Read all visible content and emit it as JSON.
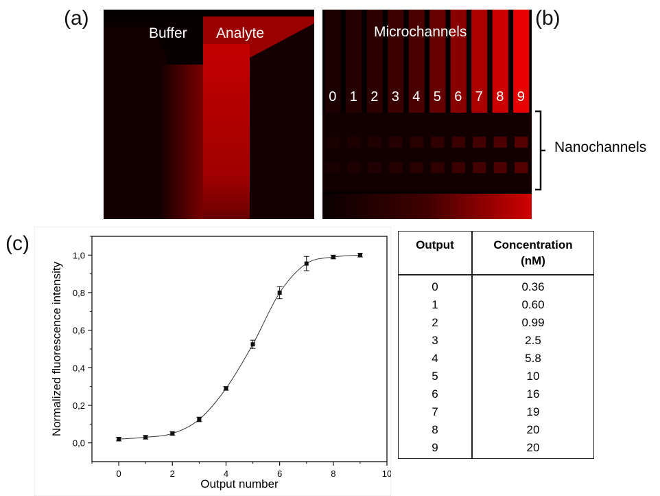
{
  "labels": {
    "a": "(a)",
    "b": "(b)",
    "c": "(c)"
  },
  "panel_a": {
    "buffer": "Buffer",
    "analyte": "Analyte"
  },
  "panel_b": {
    "title": "Microchannels",
    "outputs": [
      "0",
      "1",
      "2",
      "3",
      "4",
      "5",
      "6",
      "7",
      "8",
      "9"
    ],
    "brightness": [
      0.04,
      0.08,
      0.12,
      0.18,
      0.26,
      0.38,
      0.55,
      0.72,
      0.88,
      1.0
    ],
    "nano_label": "Nanochannels"
  },
  "colors": {
    "fluorescence": "#d40000",
    "background": "#050000"
  },
  "chart_data": {
    "type": "line",
    "xlabel": "Output number",
    "ylabel": "Normalized fluorescence intensity",
    "xlim": [
      -1,
      10
    ],
    "ylim": [
      -0.1,
      1.1
    ],
    "xticks": [
      "0",
      "2",
      "4",
      "6",
      "8",
      "10"
    ],
    "yticks": [
      "0,0",
      "0,2",
      "0,4",
      "0,6",
      "0,8",
      "1,0"
    ],
    "x": [
      0,
      1,
      2,
      3,
      4,
      5,
      6,
      7,
      8,
      9
    ],
    "y": [
      0.02,
      0.03,
      0.05,
      0.125,
      0.29,
      0.525,
      0.8,
      0.955,
      0.99,
      1.0
    ],
    "yerr": [
      0.01,
      0.01,
      0.01,
      0.012,
      0.01,
      0.022,
      0.032,
      0.038,
      0.01,
      0.01
    ]
  },
  "table": {
    "headers": [
      "Output",
      "Concentration\n(nM)"
    ],
    "rows": [
      [
        "0",
        "0.36"
      ],
      [
        "1",
        "0.60"
      ],
      [
        "2",
        "0.99"
      ],
      [
        "3",
        "2.5"
      ],
      [
        "4",
        "5.8"
      ],
      [
        "5",
        "10"
      ],
      [
        "6",
        "16"
      ],
      [
        "7",
        "19"
      ],
      [
        "8",
        "20"
      ],
      [
        "9",
        "20"
      ]
    ]
  }
}
